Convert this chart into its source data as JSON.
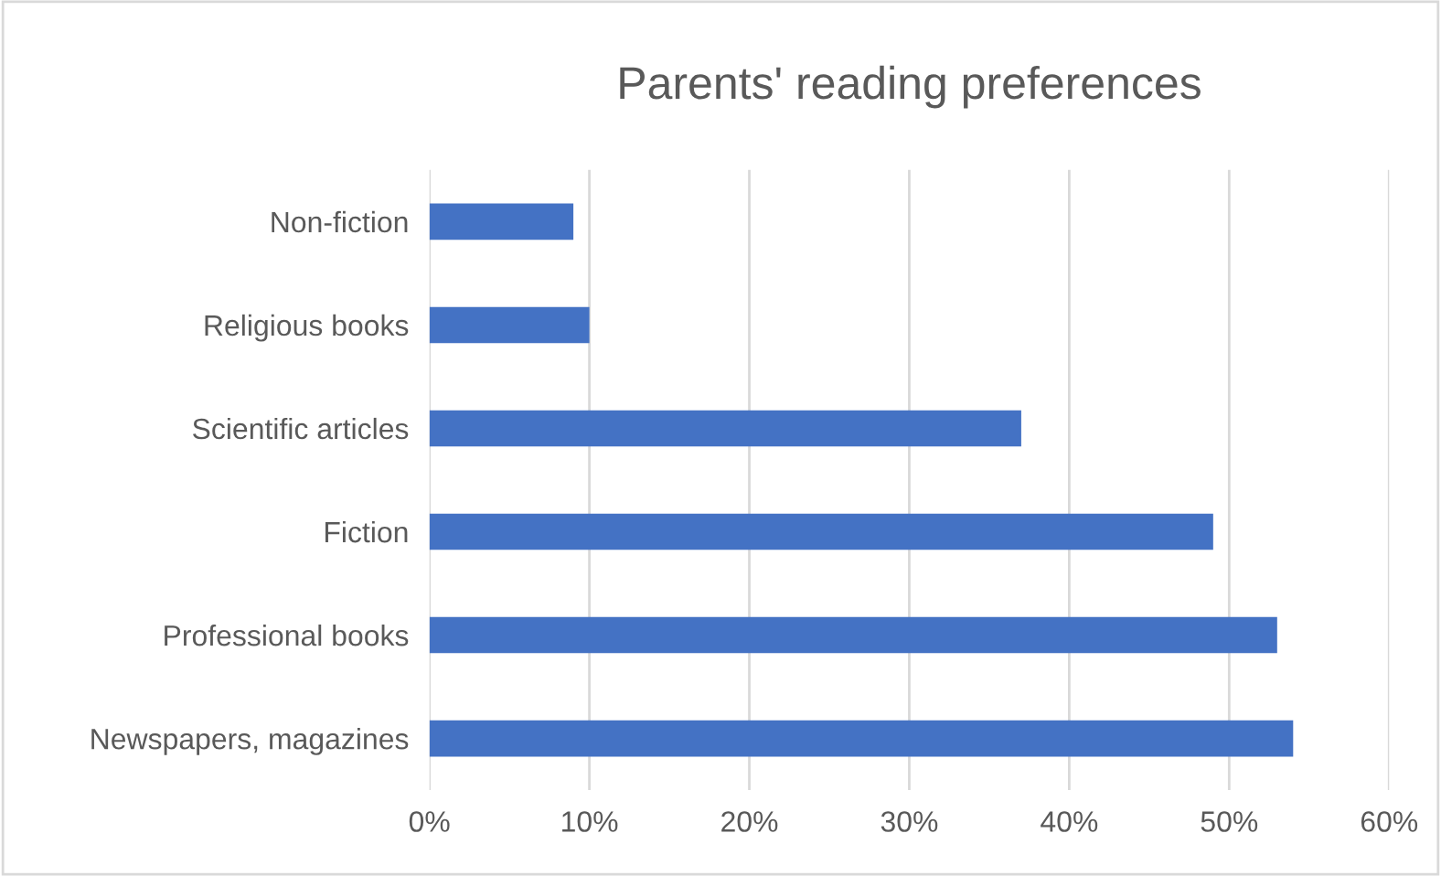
{
  "chart_data": {
    "type": "bar",
    "orientation": "horizontal",
    "title": "Parents' reading preferences",
    "categories": [
      "Non-fiction",
      "Religious books",
      "Scientific articles",
      "Fiction",
      "Professional books",
      "Newspapers, magazines"
    ],
    "values": [
      9,
      10,
      37,
      49,
      53,
      54
    ],
    "color": "#4472c4",
    "xlim": [
      0,
      60
    ],
    "xticks": [
      {
        "value": 0,
        "label": "0%"
      },
      {
        "value": 10,
        "label": "10%"
      },
      {
        "value": 20,
        "label": "20%"
      },
      {
        "value": 30,
        "label": "30%"
      },
      {
        "value": 40,
        "label": "40%"
      },
      {
        "value": 50,
        "label": "50%"
      },
      {
        "value": 60,
        "label": "60%"
      }
    ],
    "grid": "x",
    "legend": false
  }
}
